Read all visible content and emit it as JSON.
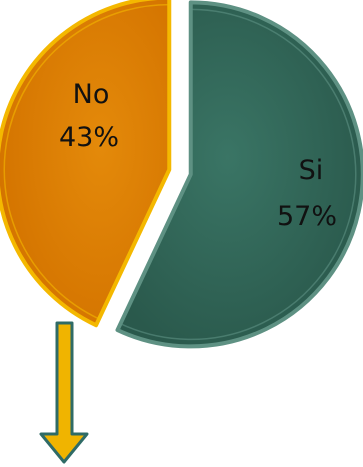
{
  "chart_data": {
    "type": "pie",
    "title": "",
    "exploded": true,
    "slices": [
      {
        "name": "Si",
        "value": 57,
        "label": "Si",
        "percent_label": "57%",
        "color": "#2e6354",
        "edge_color": "#5e9183"
      },
      {
        "name": "No",
        "value": 43,
        "label": "No",
        "percent_label": "43%",
        "color": "#e07f06",
        "edge_color": "#f4b800"
      }
    ]
  },
  "annotation": {
    "arrow": {
      "direction": "down",
      "color": "#f0b400",
      "outline": "#2f6b66"
    }
  }
}
